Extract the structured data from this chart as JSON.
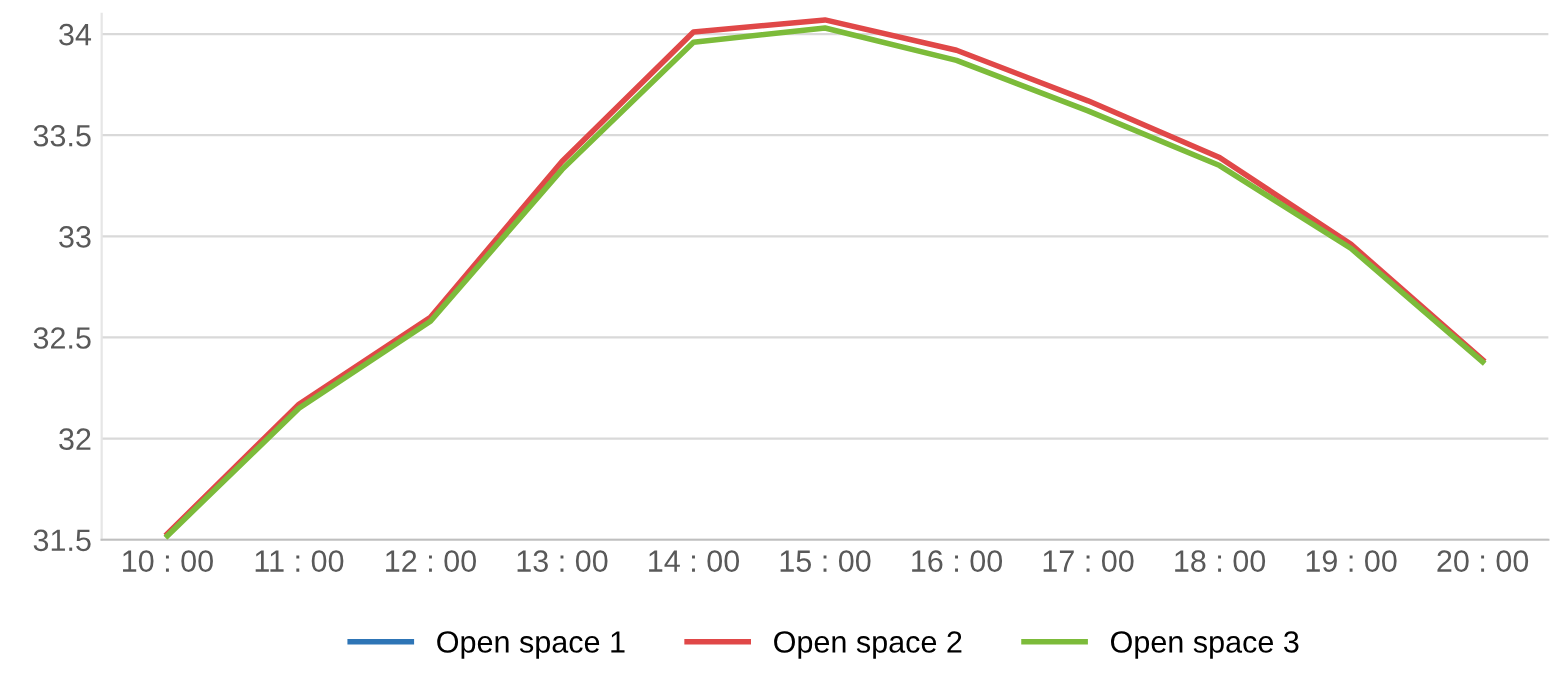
{
  "chart_data": {
    "type": "line",
    "categories": [
      "10 : 00",
      "11 : 00",
      "12 : 00",
      "13 : 00",
      "14 : 00",
      "15 : 00",
      "16 : 00",
      "17 : 00",
      "18 : 00",
      "19 : 00",
      "20 : 00"
    ],
    "series": [
      {
        "name": "Open space 1",
        "color": "#2e75b6",
        "values": [
          null,
          null,
          null,
          null,
          null,
          null,
          null,
          null,
          null,
          null,
          null
        ]
      },
      {
        "name": "Open space 2",
        "color": "#e04848",
        "values": [
          31.53,
          32.17,
          32.6,
          33.37,
          34.01,
          34.07,
          33.92,
          33.67,
          33.39,
          32.96,
          32.39
        ]
      },
      {
        "name": "Open space 3",
        "color": "#7cbb3a",
        "values": [
          31.52,
          32.15,
          32.58,
          33.33,
          33.96,
          34.03,
          33.87,
          33.62,
          33.35,
          32.94,
          32.38
        ]
      }
    ],
    "ylim": [
      31.5,
      34.1
    ],
    "yticks": [
      31.5,
      32,
      32.5,
      33,
      33.5,
      34
    ],
    "grid": "y",
    "legend": "bottom",
    "marker": "none",
    "line_style": "solid"
  }
}
